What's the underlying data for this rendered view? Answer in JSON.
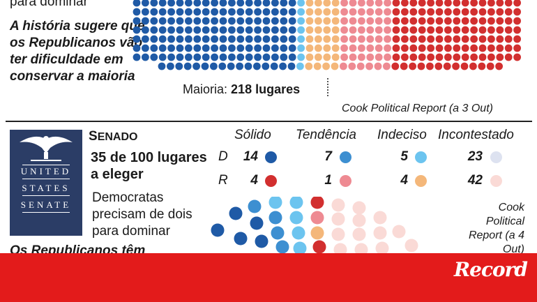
{
  "house": {
    "text_top": "para dominar",
    "note": "A história sugere que os Republicanos vão ter dificuldade em conservar a maioria",
    "majority_prefix": "Maioria:",
    "majority_value": "218 lugares",
    "source": "Cook Political Report (a 3 Out)"
  },
  "senate": {
    "seal_words": [
      "UNITED",
      "STATES",
      "SENATE"
    ],
    "title": "Senado",
    "seats": "35 de 100 lugares a eleger",
    "need": "Democratas precisam de dois para dominar",
    "rep_note": "Os Republicanos têm",
    "headers": [
      "Sólido",
      "Tendência",
      "Indeciso",
      "Incontestado"
    ],
    "rows": [
      {
        "party": "D",
        "values": [
          14,
          7,
          5,
          23
        ]
      },
      {
        "party": "R",
        "values": [
          4,
          1,
          4,
          42
        ]
      }
    ],
    "source": "Cook Political Report (a 4 Out)"
  },
  "colors": {
    "dem_solid": "#1f5aa6",
    "dem_lean": "#3d8fd1",
    "dem_tossup": "#6cc4ef",
    "dem_uncontested": "#dde2f0",
    "rep_solid": "#d22f2f",
    "rep_lean": "#ee8a92",
    "rep_tossup": "#f4b77a",
    "rep_uncontested": "#fadad6",
    "footer": "#e31b1b"
  },
  "footer": {
    "logo": "Record"
  }
}
